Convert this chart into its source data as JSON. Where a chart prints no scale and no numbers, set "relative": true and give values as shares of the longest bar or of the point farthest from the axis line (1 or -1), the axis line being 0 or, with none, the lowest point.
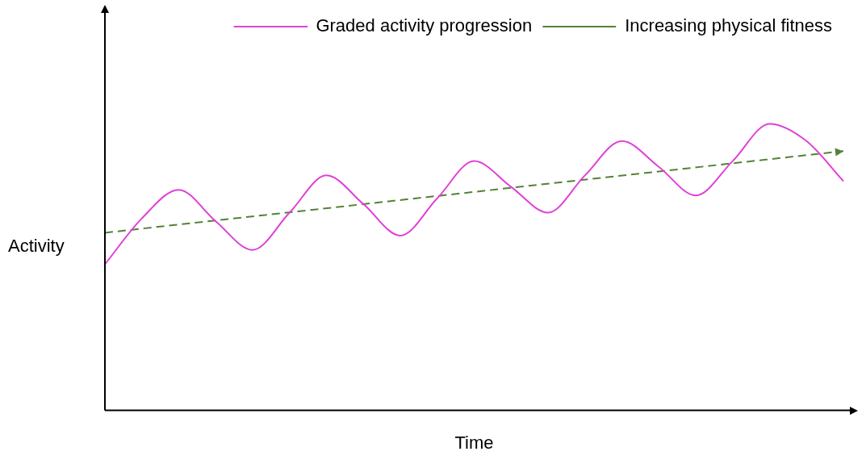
{
  "chart_data": {
    "type": "line",
    "xlabel": "Time",
    "ylabel": "Activity",
    "relative": true,
    "legend": "top right",
    "categories": [
      null,
      null,
      null,
      null,
      null,
      null,
      null,
      null,
      null,
      null,
      null,
      null,
      null,
      null,
      null,
      null,
      null,
      null,
      null,
      null,
      null
    ],
    "series": [
      {
        "name": "Graded activity progression",
        "color": "#e040d8",
        "line_style": "solid",
        "values": [
          0.51,
          0.67,
          0.77,
          0.66,
          0.56,
          0.69,
          0.82,
          0.72,
          0.61,
          0.74,
          0.87,
          0.78,
          0.69,
          0.82,
          0.94,
          0.85,
          0.75,
          0.87,
          1,
          0.94,
          0.8
        ]
      },
      {
        "name": "Increasing physical fitness",
        "color": "#548235",
        "line_style": "dashed",
        "values": [
          0.62,
          null,
          null,
          null,
          null,
          null,
          null,
          null,
          null,
          null,
          null,
          null,
          null,
          null,
          null,
          null,
          null,
          null,
          null,
          null,
          0.905
        ]
      }
    ]
  }
}
